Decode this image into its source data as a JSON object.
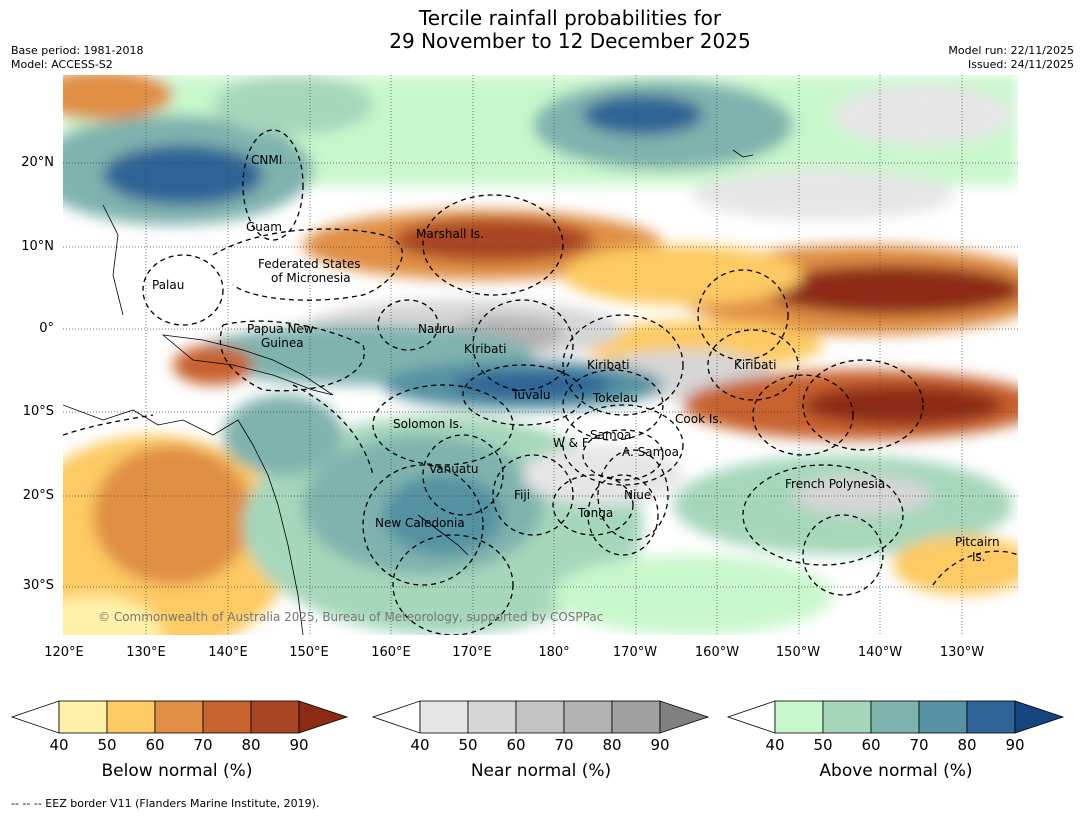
{
  "title": {
    "line1": "Tercile rainfall probabilities for",
    "line2": "29 November to 12 December 2025"
  },
  "meta": {
    "base_period": "Base period: 1981-2018",
    "model": "Model: ACCESS-S2",
    "model_run": "Model run: 22/11/2025",
    "issued": "Issued: 24/11/2025"
  },
  "axes": {
    "lon_ticks": [
      "120°E",
      "130°E",
      "140°E",
      "150°E",
      "160°E",
      "170°E",
      "180°",
      "170°W",
      "160°W",
      "150°W",
      "140°W",
      "130°W"
    ],
    "lat_ticks": [
      "20°N",
      "10°N",
      "0°",
      "10°S",
      "20°S",
      "30°S"
    ]
  },
  "regions": {
    "cnmi": "CNMI",
    "guam": "Guam",
    "marshall": "Marshall Is.",
    "fsm": "Federated States",
    "fsm2": "of Micronesia",
    "palau": "Palau",
    "png": "Papua New",
    "png2": "Guinea",
    "nauru": "Nauru",
    "kiribati1": "Kiribati",
    "kiribati2": "Kiribati",
    "kiribati3": "Kiribati",
    "tuvalu": "Tuvalu",
    "tokelau": "Tokelau",
    "solomon": "Solomon Is.",
    "wf": "W & F",
    "samoa": "Samoa",
    "asamoa": "A. Samoa",
    "cook": "Cook Is.",
    "vanuatu": "Vanuatu",
    "fiji": "Fiji",
    "niue": "Niue",
    "tonga": "Tonga",
    "newcal": "New Caledonia",
    "frpoly": "French Polynesia",
    "pitcairn": "Pitcairn",
    "pitcairn2": "Is."
  },
  "copyright": "© Commonwealth of Australia 2025, Bureau of Meteorology, supported by COSPPac",
  "colorbars": {
    "ticks": [
      "40",
      "50",
      "60",
      "70",
      "80",
      "90"
    ],
    "below": {
      "label": "Below normal (%)",
      "colors": [
        "#fff0a8",
        "#fdca64",
        "#e08f44",
        "#c8622e",
        "#a94424",
        "#8c2a14"
      ]
    },
    "near": {
      "label": "Near normal (%)",
      "colors": [
        "#e6e6e6",
        "#d6d6d6",
        "#c4c4c4",
        "#b2b2b2",
        "#a0a0a0",
        "#808080"
      ]
    },
    "above": {
      "label": "Above normal (%)",
      "colors": [
        "#c9f7cc",
        "#a6d7bc",
        "#7fb3ae",
        "#5592a2",
        "#2f6496",
        "#14457c"
      ]
    }
  },
  "footer": "--  --  -- EEZ border V11 (Flanders Marine Institute, 2019)."
}
